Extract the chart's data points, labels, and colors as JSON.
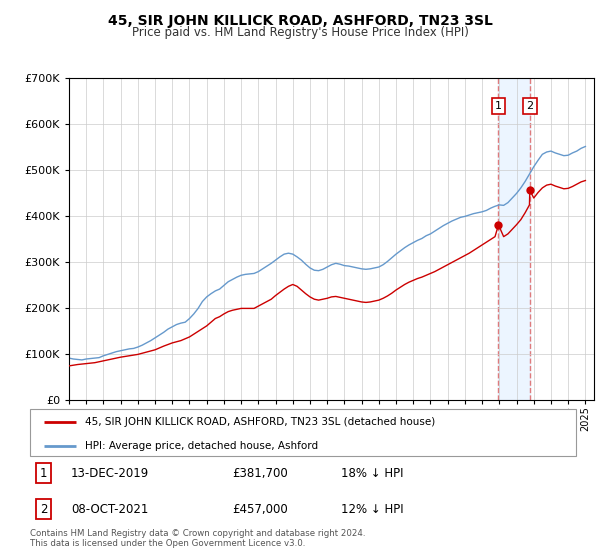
{
  "title": "45, SIR JOHN KILLICK ROAD, ASHFORD, TN23 3SL",
  "subtitle": "Price paid vs. HM Land Registry's House Price Index (HPI)",
  "legend_line1": "45, SIR JOHN KILLICK ROAD, ASHFORD, TN23 3SL (detached house)",
  "legend_line2": "HPI: Average price, detached house, Ashford",
  "annotation1_label": "1",
  "annotation1_date": "13-DEC-2019",
  "annotation1_price": "£381,700",
  "annotation1_hpi": "18% ↓ HPI",
  "annotation1_year": 2019.95,
  "annotation1_value": 381700,
  "annotation2_label": "2",
  "annotation2_date": "08-OCT-2021",
  "annotation2_price": "£457,000",
  "annotation2_hpi": "12% ↓ HPI",
  "annotation2_year": 2021.77,
  "annotation2_value": 457000,
  "footer1": "Contains HM Land Registry data © Crown copyright and database right 2024.",
  "footer2": "This data is licensed under the Open Government Licence v3.0.",
  "red_color": "#cc0000",
  "blue_color": "#6699cc",
  "shade_color": "#ddeeff",
  "vline_color": "#dd6666",
  "ylim": [
    0,
    700000
  ],
  "xlim_start": 1995.0,
  "xlim_end": 2025.5,
  "hpi_data": [
    [
      1995.0,
      92000
    ],
    [
      1995.25,
      90000
    ],
    [
      1995.5,
      89000
    ],
    [
      1995.75,
      88000
    ],
    [
      1996.0,
      90000
    ],
    [
      1996.25,
      91000
    ],
    [
      1996.5,
      92000
    ],
    [
      1996.75,
      93000
    ],
    [
      1997.0,
      97000
    ],
    [
      1997.25,
      100000
    ],
    [
      1997.5,
      103000
    ],
    [
      1997.75,
      106000
    ],
    [
      1998.0,
      108000
    ],
    [
      1998.25,
      110000
    ],
    [
      1998.5,
      112000
    ],
    [
      1998.75,
      113000
    ],
    [
      1999.0,
      116000
    ],
    [
      1999.25,
      120000
    ],
    [
      1999.5,
      125000
    ],
    [
      1999.75,
      130000
    ],
    [
      2000.0,
      136000
    ],
    [
      2000.25,
      142000
    ],
    [
      2000.5,
      148000
    ],
    [
      2000.75,
      155000
    ],
    [
      2001.0,
      160000
    ],
    [
      2001.25,
      165000
    ],
    [
      2001.5,
      168000
    ],
    [
      2001.75,
      170000
    ],
    [
      2002.0,
      178000
    ],
    [
      2002.25,
      188000
    ],
    [
      2002.5,
      200000
    ],
    [
      2002.75,
      215000
    ],
    [
      2003.0,
      225000
    ],
    [
      2003.25,
      232000
    ],
    [
      2003.5,
      238000
    ],
    [
      2003.75,
      242000
    ],
    [
      2004.0,
      250000
    ],
    [
      2004.25,
      258000
    ],
    [
      2004.5,
      263000
    ],
    [
      2004.75,
      268000
    ],
    [
      2005.0,
      272000
    ],
    [
      2005.25,
      274000
    ],
    [
      2005.5,
      275000
    ],
    [
      2005.75,
      276000
    ],
    [
      2006.0,
      280000
    ],
    [
      2006.25,
      286000
    ],
    [
      2006.5,
      292000
    ],
    [
      2006.75,
      298000
    ],
    [
      2007.0,
      305000
    ],
    [
      2007.25,
      312000
    ],
    [
      2007.5,
      318000
    ],
    [
      2007.75,
      320000
    ],
    [
      2008.0,
      318000
    ],
    [
      2008.25,
      312000
    ],
    [
      2008.5,
      305000
    ],
    [
      2008.75,
      296000
    ],
    [
      2009.0,
      288000
    ],
    [
      2009.25,
      283000
    ],
    [
      2009.5,
      282000
    ],
    [
      2009.75,
      285000
    ],
    [
      2010.0,
      290000
    ],
    [
      2010.25,
      295000
    ],
    [
      2010.5,
      298000
    ],
    [
      2010.75,
      296000
    ],
    [
      2011.0,
      293000
    ],
    [
      2011.25,
      292000
    ],
    [
      2011.5,
      290000
    ],
    [
      2011.75,
      288000
    ],
    [
      2012.0,
      286000
    ],
    [
      2012.25,
      285000
    ],
    [
      2012.5,
      286000
    ],
    [
      2012.75,
      288000
    ],
    [
      2013.0,
      290000
    ],
    [
      2013.25,
      295000
    ],
    [
      2013.5,
      302000
    ],
    [
      2013.75,
      310000
    ],
    [
      2014.0,
      318000
    ],
    [
      2014.25,
      325000
    ],
    [
      2014.5,
      332000
    ],
    [
      2014.75,
      338000
    ],
    [
      2015.0,
      343000
    ],
    [
      2015.25,
      348000
    ],
    [
      2015.5,
      352000
    ],
    [
      2015.75,
      358000
    ],
    [
      2016.0,
      362000
    ],
    [
      2016.25,
      368000
    ],
    [
      2016.5,
      374000
    ],
    [
      2016.75,
      380000
    ],
    [
      2017.0,
      385000
    ],
    [
      2017.25,
      390000
    ],
    [
      2017.5,
      394000
    ],
    [
      2017.75,
      398000
    ],
    [
      2018.0,
      400000
    ],
    [
      2018.25,
      403000
    ],
    [
      2018.5,
      406000
    ],
    [
      2018.75,
      408000
    ],
    [
      2019.0,
      410000
    ],
    [
      2019.25,
      413000
    ],
    [
      2019.5,
      418000
    ],
    [
      2019.75,
      422000
    ],
    [
      2020.0,
      425000
    ],
    [
      2020.25,
      424000
    ],
    [
      2020.5,
      430000
    ],
    [
      2020.75,
      440000
    ],
    [
      2021.0,
      450000
    ],
    [
      2021.25,
      462000
    ],
    [
      2021.5,
      476000
    ],
    [
      2021.75,
      492000
    ],
    [
      2022.0,
      508000
    ],
    [
      2022.25,
      522000
    ],
    [
      2022.5,
      535000
    ],
    [
      2022.75,
      540000
    ],
    [
      2023.0,
      542000
    ],
    [
      2023.25,
      538000
    ],
    [
      2023.5,
      535000
    ],
    [
      2023.75,
      532000
    ],
    [
      2024.0,
      533000
    ],
    [
      2024.25,
      538000
    ],
    [
      2024.5,
      542000
    ],
    [
      2024.75,
      548000
    ],
    [
      2025.0,
      552000
    ]
  ],
  "price_data": [
    [
      1995.0,
      75000
    ],
    [
      1995.5,
      78000
    ],
    [
      1996.0,
      80000
    ],
    [
      1996.5,
      82000
    ],
    [
      1997.0,
      86000
    ],
    [
      1997.5,
      90000
    ],
    [
      1998.0,
      94000
    ],
    [
      1998.5,
      97000
    ],
    [
      1999.0,
      100000
    ],
    [
      1999.5,
      105000
    ],
    [
      2000.0,
      110000
    ],
    [
      2000.5,
      118000
    ],
    [
      2001.0,
      125000
    ],
    [
      2001.5,
      130000
    ],
    [
      2002.0,
      138000
    ],
    [
      2002.5,
      150000
    ],
    [
      2003.0,
      162000
    ],
    [
      2003.25,
      170000
    ],
    [
      2003.5,
      178000
    ],
    [
      2003.75,
      182000
    ],
    [
      2004.0,
      188000
    ],
    [
      2004.25,
      193000
    ],
    [
      2004.5,
      196000
    ],
    [
      2004.75,
      198000
    ],
    [
      2005.0,
      200000
    ],
    [
      2005.25,
      200000
    ],
    [
      2005.5,
      200000
    ],
    [
      2005.75,
      200000
    ],
    [
      2006.0,
      205000
    ],
    [
      2006.25,
      210000
    ],
    [
      2006.5,
      215000
    ],
    [
      2006.75,
      220000
    ],
    [
      2007.0,
      228000
    ],
    [
      2007.25,
      235000
    ],
    [
      2007.5,
      242000
    ],
    [
      2007.75,
      248000
    ],
    [
      2008.0,
      252000
    ],
    [
      2008.25,
      248000
    ],
    [
      2008.5,
      240000
    ],
    [
      2008.75,
      232000
    ],
    [
      2009.0,
      225000
    ],
    [
      2009.25,
      220000
    ],
    [
      2009.5,
      218000
    ],
    [
      2009.75,
      220000
    ],
    [
      2010.0,
      222000
    ],
    [
      2010.25,
      225000
    ],
    [
      2010.5,
      226000
    ],
    [
      2010.75,
      224000
    ],
    [
      2011.0,
      222000
    ],
    [
      2011.25,
      220000
    ],
    [
      2011.5,
      218000
    ],
    [
      2011.75,
      216000
    ],
    [
      2012.0,
      214000
    ],
    [
      2012.25,
      213000
    ],
    [
      2012.5,
      214000
    ],
    [
      2012.75,
      216000
    ],
    [
      2013.0,
      218000
    ],
    [
      2013.25,
      222000
    ],
    [
      2013.5,
      227000
    ],
    [
      2013.75,
      233000
    ],
    [
      2014.0,
      240000
    ],
    [
      2014.25,
      246000
    ],
    [
      2014.5,
      252000
    ],
    [
      2014.75,
      257000
    ],
    [
      2015.0,
      261000
    ],
    [
      2015.25,
      265000
    ],
    [
      2015.5,
      268000
    ],
    [
      2015.75,
      272000
    ],
    [
      2016.0,
      276000
    ],
    [
      2016.25,
      280000
    ],
    [
      2016.5,
      285000
    ],
    [
      2016.75,
      290000
    ],
    [
      2017.0,
      295000
    ],
    [
      2017.25,
      300000
    ],
    [
      2017.5,
      305000
    ],
    [
      2017.75,
      310000
    ],
    [
      2018.0,
      315000
    ],
    [
      2018.25,
      320000
    ],
    [
      2018.5,
      326000
    ],
    [
      2018.75,
      332000
    ],
    [
      2019.0,
      338000
    ],
    [
      2019.25,
      344000
    ],
    [
      2019.5,
      350000
    ],
    [
      2019.75,
      356000
    ],
    [
      2019.95,
      381700
    ],
    [
      2020.25,
      356000
    ],
    [
      2020.5,
      362000
    ],
    [
      2020.75,
      372000
    ],
    [
      2021.0,
      382000
    ],
    [
      2021.25,
      393000
    ],
    [
      2021.5,
      408000
    ],
    [
      2021.75,
      425000
    ],
    [
      2021.77,
      457000
    ],
    [
      2022.0,
      440000
    ],
    [
      2022.25,
      452000
    ],
    [
      2022.5,
      462000
    ],
    [
      2022.75,
      468000
    ],
    [
      2023.0,
      470000
    ],
    [
      2023.25,
      466000
    ],
    [
      2023.5,
      463000
    ],
    [
      2023.75,
      460000
    ],
    [
      2024.0,
      461000
    ],
    [
      2024.25,
      465000
    ],
    [
      2024.5,
      470000
    ],
    [
      2024.75,
      475000
    ],
    [
      2025.0,
      478000
    ]
  ]
}
